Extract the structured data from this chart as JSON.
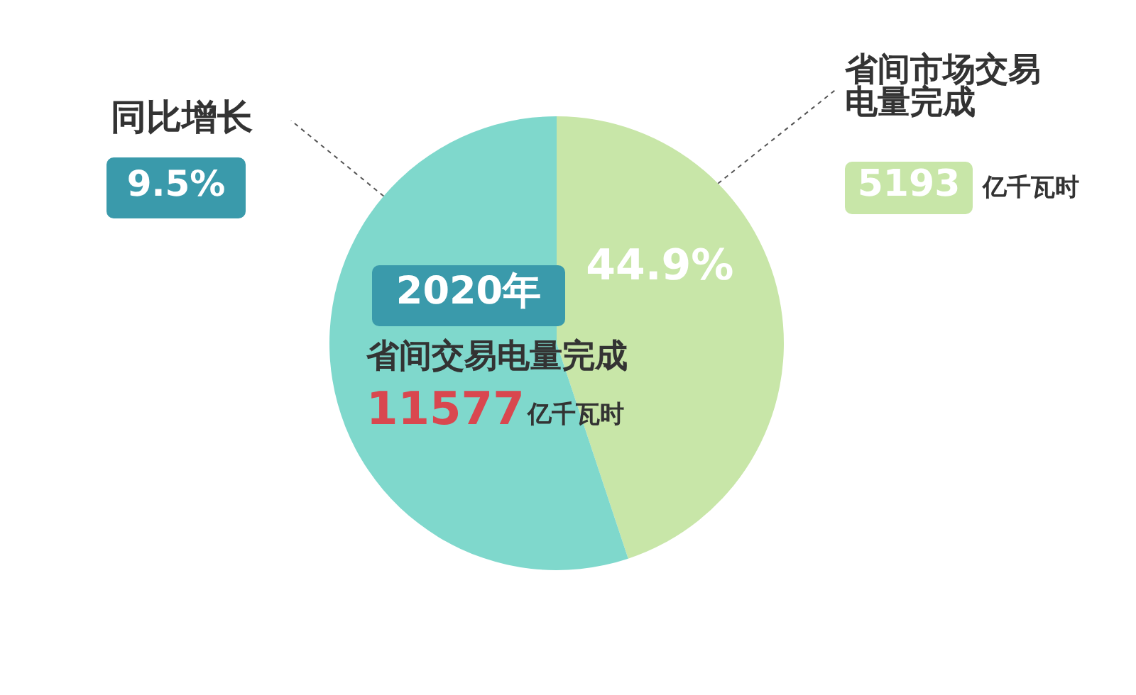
{
  "chart_data": {
    "type": "pie",
    "categories": [
      "省间市场交易电量完成",
      null
    ],
    "values": [
      44.9,
      55.1
    ],
    "colors": [
      "#c8e6a8",
      "#7fd8cc"
    ],
    "value_labels": [
      "44.9%",
      null
    ],
    "legend": false,
    "annotations": [
      "同比增长",
      "9.5%",
      "2020年",
      "省间交易电量完成",
      "11577亿千瓦时",
      "5193亿千瓦时"
    ]
  }
}
